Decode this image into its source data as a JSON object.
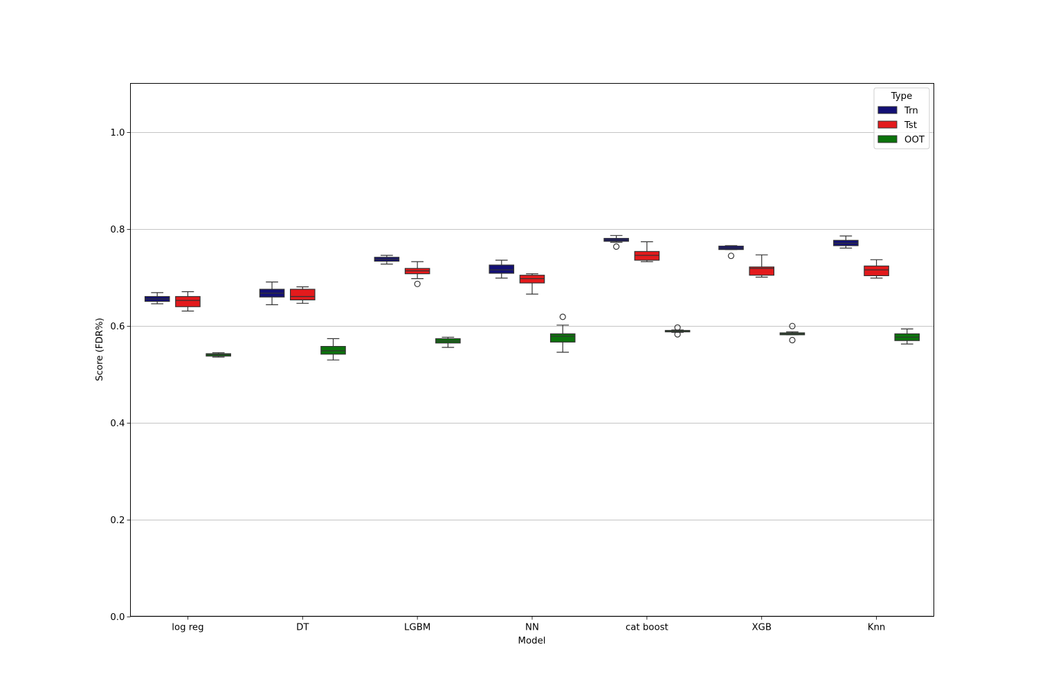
{
  "chart_data": {
    "type": "box",
    "xlabel": "Model",
    "ylabel": "Score (FDR%)",
    "ylim": [
      0.0,
      1.1
    ],
    "yticks": [
      0.0,
      0.2,
      0.4,
      0.6,
      0.8,
      1.0
    ],
    "ytick_labels": [
      "0.0",
      "0.2",
      "0.4",
      "0.6",
      "0.8",
      "1.0"
    ],
    "grid": "horizontal",
    "legend": {
      "title": "Type",
      "placement": "top-right"
    },
    "categories": [
      "log reg",
      "DT",
      "LGBM",
      "NN",
      "cat boost",
      "XGB",
      "Knn"
    ],
    "series": [
      {
        "name": "Trn",
        "color": "#131075",
        "boxes": [
          {
            "whislo": 0.645,
            "q1": 0.65,
            "med": 0.655,
            "q3": 0.66,
            "whishi": 0.668,
            "fliers": []
          },
          {
            "whislo": 0.643,
            "q1": 0.659,
            "med": 0.667,
            "q3": 0.675,
            "whishi": 0.69,
            "fliers": []
          },
          {
            "whislo": 0.727,
            "q1": 0.733,
            "med": 0.737,
            "q3": 0.741,
            "whishi": 0.745,
            "fliers": []
          },
          {
            "whislo": 0.698,
            "q1": 0.708,
            "med": 0.715,
            "q3": 0.725,
            "whishi": 0.735,
            "fliers": []
          },
          {
            "whislo": 0.772,
            "q1": 0.774,
            "med": 0.777,
            "q3": 0.78,
            "whishi": 0.786,
            "fliers": [
              0.763
            ]
          },
          {
            "whislo": 0.757,
            "q1": 0.757,
            "med": 0.76,
            "q3": 0.764,
            "whishi": 0.765,
            "fliers": [
              0.744
            ]
          },
          {
            "whislo": 0.76,
            "q1": 0.765,
            "med": 0.77,
            "q3": 0.776,
            "whishi": 0.785,
            "fliers": []
          }
        ]
      },
      {
        "name": "Tst",
        "color": "#e31a1c",
        "boxes": [
          {
            "whislo": 0.63,
            "q1": 0.639,
            "med": 0.652,
            "q3": 0.66,
            "whishi": 0.67,
            "fliers": []
          },
          {
            "whislo": 0.646,
            "q1": 0.653,
            "med": 0.66,
            "q3": 0.675,
            "whishi": 0.68,
            "fliers": []
          },
          {
            "whislo": 0.697,
            "q1": 0.707,
            "med": 0.713,
            "q3": 0.718,
            "whishi": 0.732,
            "fliers": [
              0.686
            ]
          },
          {
            "whislo": 0.665,
            "q1": 0.688,
            "med": 0.697,
            "q3": 0.704,
            "whishi": 0.707,
            "fliers": []
          },
          {
            "whislo": 0.732,
            "q1": 0.735,
            "med": 0.745,
            "q3": 0.753,
            "whishi": 0.773,
            "fliers": []
          },
          {
            "whislo": 0.7,
            "q1": 0.704,
            "med": 0.718,
            "q3": 0.721,
            "whishi": 0.746,
            "fliers": []
          },
          {
            "whislo": 0.698,
            "q1": 0.703,
            "med": 0.715,
            "q3": 0.723,
            "whishi": 0.736,
            "fliers": []
          }
        ]
      },
      {
        "name": "OOT",
        "color": "#0c730c",
        "boxes": [
          {
            "whislo": 0.535,
            "q1": 0.537,
            "med": 0.54,
            "q3": 0.542,
            "whishi": 0.544,
            "fliers": []
          },
          {
            "whislo": 0.529,
            "q1": 0.541,
            "med": 0.548,
            "q3": 0.557,
            "whishi": 0.573,
            "fliers": []
          },
          {
            "whislo": 0.555,
            "q1": 0.564,
            "med": 0.568,
            "q3": 0.573,
            "whishi": 0.576,
            "fliers": []
          },
          {
            "whislo": 0.545,
            "q1": 0.566,
            "med": 0.578,
            "q3": 0.583,
            "whishi": 0.601,
            "fliers": [
              0.618
            ]
          },
          {
            "whislo": 0.586,
            "q1": 0.587,
            "med": 0.588,
            "q3": 0.59,
            "whishi": 0.591,
            "fliers": [
              0.596,
              0.582
            ]
          },
          {
            "whislo": 0.581,
            "q1": 0.581,
            "med": 0.583,
            "q3": 0.585,
            "whishi": 0.587,
            "fliers": [
              0.599,
              0.57
            ]
          },
          {
            "whislo": 0.562,
            "q1": 0.569,
            "med": 0.576,
            "q3": 0.583,
            "whishi": 0.593,
            "fliers": []
          }
        ]
      }
    ]
  }
}
